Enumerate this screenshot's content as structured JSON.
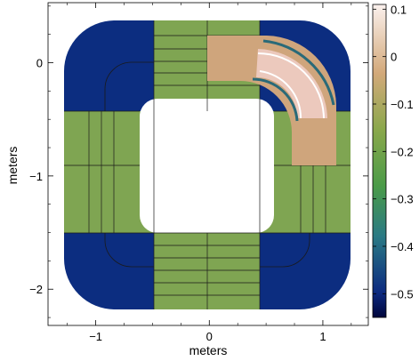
{
  "chart_data": {
    "type": "heatmap",
    "xlabel": "meters",
    "ylabel": "meters",
    "xlim": [
      -1.42,
      1.4
    ],
    "ylim": [
      -2.32,
      0.53
    ],
    "x_ticks": [
      {
        "value": -1,
        "label": "−1"
      },
      {
        "value": 0,
        "label": "0"
      },
      {
        "value": 1,
        "label": "1"
      }
    ],
    "y_ticks": [
      {
        "value": 0,
        "label": "0"
      },
      {
        "value": -1,
        "label": "−1"
      },
      {
        "value": -2,
        "label": "−2"
      }
    ],
    "colorbar": {
      "range": [
        -0.55,
        0.11
      ],
      "ticks": [
        {
          "value": 0.1,
          "label": "0.1"
        },
        {
          "value": 0,
          "label": "0"
        },
        {
          "value": -0.1,
          "label": "−0.1"
        },
        {
          "value": -0.2,
          "label": "−0.2"
        },
        {
          "value": -0.3,
          "label": "−0.3"
        },
        {
          "value": -0.4,
          "label": "−0.4"
        },
        {
          "value": -0.5,
          "label": "−0.5"
        }
      ]
    },
    "regions": [
      {
        "region": "corner (4 quadrants)",
        "value": -0.52
      },
      {
        "region": "side straight sections",
        "value": -0.12
      },
      {
        "region": "upper-right shifted block",
        "value": 0.0
      },
      {
        "region": "curved insert",
        "value": 0.07
      }
    ]
  }
}
